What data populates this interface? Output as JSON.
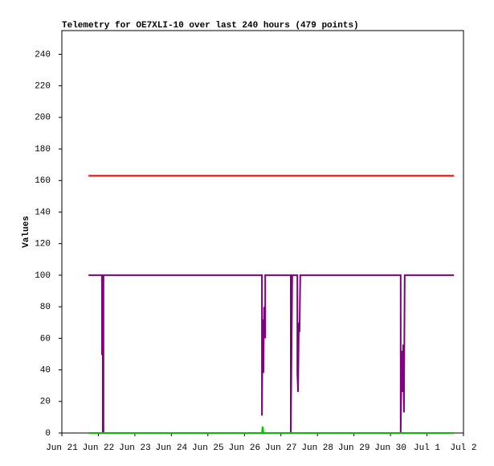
{
  "chart_data": {
    "type": "line",
    "title": "Telemetry for OE7XLI-10 over last 240 hours (479 points)",
    "y_label": "Values",
    "xlim": [
      0,
      11
    ],
    "ylim": [
      0,
      255
    ],
    "xticks": [
      {
        "value": 0,
        "label": "Jun 21"
      },
      {
        "value": 1,
        "label": "Jun 22"
      },
      {
        "value": 2,
        "label": "Jun 23"
      },
      {
        "value": 3,
        "label": "Jun 24"
      },
      {
        "value": 4,
        "label": "Jun 25"
      },
      {
        "value": 5,
        "label": "Jun 26"
      },
      {
        "value": 6,
        "label": "Jun 27"
      },
      {
        "value": 7,
        "label": "Jun 28"
      },
      {
        "value": 8,
        "label": "Jun 29"
      },
      {
        "value": 9,
        "label": "Jun 30"
      },
      {
        "value": 10,
        "label": "Jul 1"
      },
      {
        "value": 11,
        "label": "Jul 2"
      }
    ],
    "yticks": [
      0,
      20,
      40,
      60,
      80,
      100,
      120,
      140,
      160,
      180,
      200,
      220,
      240
    ],
    "series": [
      {
        "color": "#ff0000",
        "x": [
          0.73,
          10.74
        ],
        "values": [
          163,
          163
        ]
      },
      {
        "color": "#800080",
        "x": [
          0.73,
          1.1,
          1.1,
          1.12,
          1.12,
          1.14,
          1.14,
          5.48,
          5.48,
          5.5,
          5.52,
          5.54,
          5.57,
          5.57,
          6.27,
          6.27,
          6.29,
          6.31,
          6.45,
          6.45,
          6.47,
          6.49,
          6.51,
          6.53,
          9.28,
          9.28,
          9.31,
          9.33,
          9.35,
          9.37,
          9.39,
          10.74
        ],
        "values": [
          100,
          100,
          50,
          50,
          0,
          0,
          100,
          100,
          11,
          72,
          38,
          80,
          60,
          100,
          100,
          0,
          50,
          100,
          100,
          38,
          26,
          70,
          64,
          100,
          100,
          0,
          52,
          26,
          56,
          13,
          100,
          100
        ]
      },
      {
        "color": "#00c000",
        "x": [
          0.73,
          5.48,
          5.5,
          5.52,
          10.74
        ],
        "values": [
          0,
          0,
          4,
          0,
          0
        ]
      }
    ]
  }
}
